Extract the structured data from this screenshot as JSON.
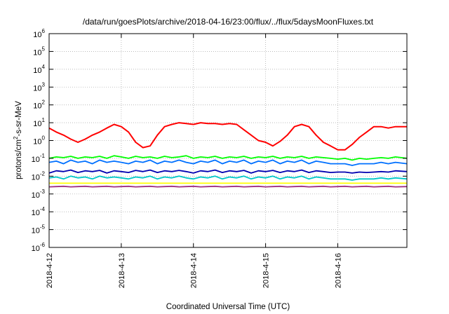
{
  "chart_data": {
    "type": "line",
    "title": "/data/run/goesPlots/archive/2018-04-16/23:00/flux/../flux/5daysMoonFluxes.txt",
    "xlabel": "Coordinated Universal Time (UTC)",
    "ylabel_main": "protons/cm",
    "ylabel_sup": "2",
    "ylabel_tail": "-s-sr-MeV",
    "y_scale": "log",
    "ylim": [
      1e-06,
      1000000
    ],
    "xlim": [
      "2018-04-12",
      "2018-04-16T23:00"
    ],
    "grid": true,
    "legend": "none",
    "x_ticks": [
      "2018-4-12",
      "2018-4-13",
      "2018-4-14",
      "2018-4-15",
      "2018-4-16"
    ],
    "y_ticks": [
      {
        "base": "10",
        "exp": "-6"
      },
      {
        "base": "10",
        "exp": "-5"
      },
      {
        "base": "10",
        "exp": "-4"
      },
      {
        "base": "10",
        "exp": "-3"
      },
      {
        "base": "10",
        "exp": "-2"
      },
      {
        "base": "10",
        "exp": "-1"
      },
      {
        "base": "10",
        "exp": "0"
      },
      {
        "base": "10",
        "exp": "1"
      },
      {
        "base": "10",
        "exp": "2"
      },
      {
        "base": "10",
        "exp": "3"
      },
      {
        "base": "10",
        "exp": "4"
      },
      {
        "base": "10",
        "exp": "5"
      },
      {
        "base": "10",
        "exp": "6"
      }
    ],
    "x_days": [
      0,
      0.1,
      0.2,
      0.3,
      0.4,
      0.5,
      0.6,
      0.7,
      0.8,
      0.9,
      1.0,
      1.1,
      1.2,
      1.3,
      1.4,
      1.5,
      1.6,
      1.7,
      1.8,
      1.9,
      2.0,
      2.1,
      2.2,
      2.3,
      2.4,
      2.5,
      2.6,
      2.7,
      2.8,
      2.9,
      3.0,
      3.1,
      3.2,
      3.3,
      3.4,
      3.5,
      3.6,
      3.7,
      3.8,
      3.9,
      4.0,
      4.1,
      4.2,
      4.3,
      4.4,
      4.5,
      4.6,
      4.7,
      4.8,
      4.96
    ],
    "series": [
      {
        "color": "#ff0000",
        "values": [
          5,
          3,
          2,
          1.2,
          0.8,
          1.2,
          2,
          3,
          5,
          8,
          6,
          3,
          0.8,
          0.4,
          0.5,
          2,
          6,
          8,
          10,
          9,
          8,
          10,
          9,
          9,
          8,
          9,
          8,
          4,
          2,
          1,
          0.8,
          0.5,
          0.9,
          2,
          6,
          8,
          6,
          2,
          0.8,
          0.5,
          0.3,
          0.3,
          0.6,
          1.5,
          3,
          6,
          6,
          5,
          6,
          6
        ]
      },
      {
        "color": "#00ff00",
        "values": [
          0.1,
          0.12,
          0.11,
          0.13,
          0.1,
          0.12,
          0.11,
          0.13,
          0.1,
          0.14,
          0.12,
          0.1,
          0.13,
          0.11,
          0.12,
          0.1,
          0.13,
          0.11,
          0.12,
          0.14,
          0.1,
          0.12,
          0.11,
          0.13,
          0.1,
          0.12,
          0.11,
          0.13,
          0.1,
          0.12,
          0.11,
          0.13,
          0.1,
          0.12,
          0.11,
          0.13,
          0.1,
          0.12,
          0.11,
          0.1,
          0.09,
          0.1,
          0.08,
          0.1,
          0.09,
          0.1,
          0.11,
          0.1,
          0.12,
          0.1
        ]
      },
      {
        "color": "#0070ff",
        "values": [
          0.06,
          0.07,
          0.05,
          0.08,
          0.06,
          0.07,
          0.05,
          0.08,
          0.06,
          0.07,
          0.06,
          0.05,
          0.07,
          0.06,
          0.08,
          0.05,
          0.07,
          0.06,
          0.08,
          0.06,
          0.05,
          0.07,
          0.06,
          0.08,
          0.05,
          0.07,
          0.06,
          0.08,
          0.05,
          0.07,
          0.06,
          0.08,
          0.05,
          0.07,
          0.06,
          0.08,
          0.05,
          0.07,
          0.06,
          0.05,
          0.05,
          0.05,
          0.04,
          0.05,
          0.05,
          0.05,
          0.06,
          0.05,
          0.06,
          0.05
        ]
      },
      {
        "color": "#0000b0",
        "values": [
          0.015,
          0.02,
          0.018,
          0.022,
          0.016,
          0.02,
          0.018,
          0.021,
          0.015,
          0.02,
          0.018,
          0.016,
          0.021,
          0.018,
          0.022,
          0.016,
          0.02,
          0.018,
          0.021,
          0.018,
          0.015,
          0.02,
          0.018,
          0.022,
          0.016,
          0.02,
          0.018,
          0.021,
          0.015,
          0.02,
          0.018,
          0.021,
          0.016,
          0.02,
          0.018,
          0.022,
          0.016,
          0.02,
          0.018,
          0.016,
          0.017,
          0.017,
          0.015,
          0.017,
          0.016,
          0.017,
          0.018,
          0.017,
          0.02,
          0.018
        ]
      },
      {
        "color": "#00c8c8",
        "values": [
          0.008,
          0.009,
          0.007,
          0.01,
          0.008,
          0.009,
          0.007,
          0.01,
          0.008,
          0.009,
          0.008,
          0.007,
          0.009,
          0.008,
          0.01,
          0.007,
          0.009,
          0.008,
          0.01,
          0.008,
          0.007,
          0.009,
          0.008,
          0.01,
          0.007,
          0.009,
          0.008,
          0.01,
          0.007,
          0.009,
          0.008,
          0.01,
          0.007,
          0.009,
          0.008,
          0.01,
          0.007,
          0.009,
          0.008,
          0.007,
          0.007,
          0.007,
          0.006,
          0.007,
          0.007,
          0.007,
          0.008,
          0.007,
          0.008,
          0.007
        ]
      },
      {
        "color": "#ffff00",
        "values": [
          0.004,
          0.004,
          0.004,
          0.004,
          0.004,
          0.004,
          0.004,
          0.004,
          0.004,
          0.004,
          0.004,
          0.004,
          0.004,
          0.004,
          0.004,
          0.004,
          0.004,
          0.004,
          0.004,
          0.004,
          0.004,
          0.004,
          0.004,
          0.004,
          0.004,
          0.004,
          0.004,
          0.004,
          0.004,
          0.004,
          0.004,
          0.004,
          0.004,
          0.004,
          0.004,
          0.004,
          0.004,
          0.004,
          0.004,
          0.004,
          0.004,
          0.004,
          0.004,
          0.004,
          0.004,
          0.004,
          0.004,
          0.004,
          0.004,
          0.004
        ]
      },
      {
        "color": "#a03080",
        "values": [
          0.0025,
          0.0026,
          0.0027,
          0.0025,
          0.0026,
          0.0027,
          0.0025,
          0.0026,
          0.0027,
          0.0025,
          0.0026,
          0.0027,
          0.0025,
          0.0026,
          0.0027,
          0.0025,
          0.0026,
          0.0027,
          0.0025,
          0.0026,
          0.0027,
          0.0025,
          0.0026,
          0.0027,
          0.0025,
          0.0026,
          0.0027,
          0.0025,
          0.0026,
          0.0027,
          0.0025,
          0.0026,
          0.0027,
          0.0025,
          0.0026,
          0.0027,
          0.0025,
          0.0026,
          0.0027,
          0.0025,
          0.0026,
          0.0027,
          0.0025,
          0.0026,
          0.0027,
          0.0025,
          0.0026,
          0.0027,
          0.0025,
          0.0026
        ]
      }
    ]
  }
}
